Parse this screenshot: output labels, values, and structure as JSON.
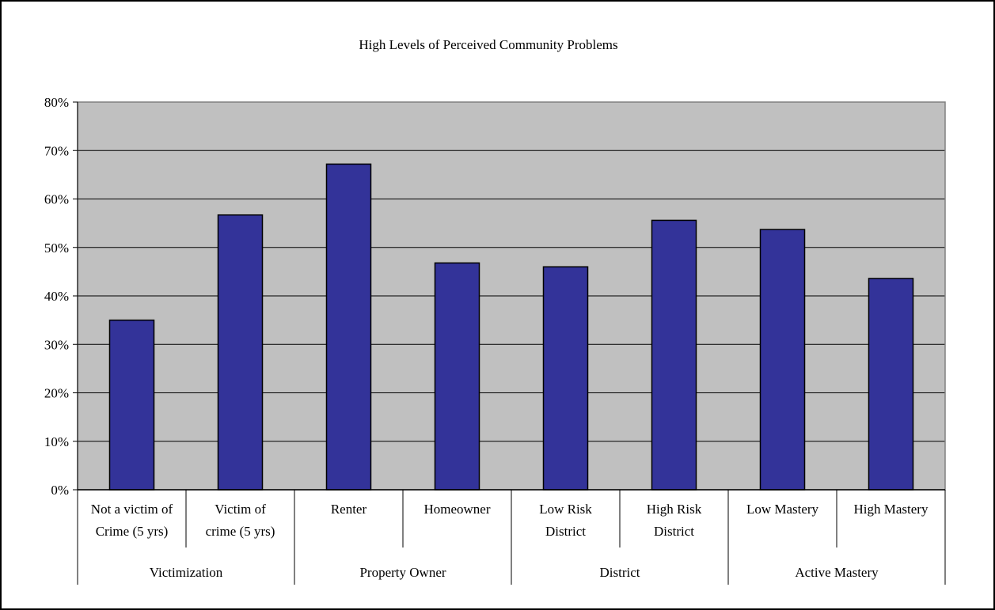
{
  "chart_data": {
    "type": "bar",
    "title": "High Levels of Perceived Community Problems",
    "xlabel": "",
    "ylabel": "",
    "ylim": [
      0,
      0.8
    ],
    "y_tick_values": [
      0,
      0.1,
      0.2,
      0.3,
      0.4,
      0.5,
      0.6,
      0.7,
      0.8
    ],
    "y_tick_labels": [
      "0%",
      "10%",
      "20%",
      "30%",
      "40%",
      "50%",
      "60%",
      "70%",
      "80%"
    ],
    "grid": true,
    "legend": "none",
    "categories": [
      [
        "Not a victim of",
        "Crime (5 yrs)"
      ],
      [
        "Victim of",
        "crime (5 yrs)"
      ],
      [
        "Renter"
      ],
      [
        "Homeowner"
      ],
      [
        "Low Risk",
        "District"
      ],
      [
        "High Risk",
        "District"
      ],
      [
        "Low Mastery"
      ],
      [
        "High Mastery"
      ]
    ],
    "groups": [
      {
        "label": "Victimization",
        "count": 2
      },
      {
        "label": "Property Owner",
        "count": 2
      },
      {
        "label": "District",
        "count": 2
      },
      {
        "label": "Active Mastery",
        "count": 2
      }
    ],
    "values": [
      0.35,
      0.567,
      0.672,
      0.468,
      0.46,
      0.556,
      0.537,
      0.436
    ],
    "colors": {
      "bar_fill": "#333399",
      "bar_stroke": "#000000",
      "plot_background": "#c0c0c0",
      "plot_border": "#808080",
      "gridline": "#000000"
    }
  }
}
